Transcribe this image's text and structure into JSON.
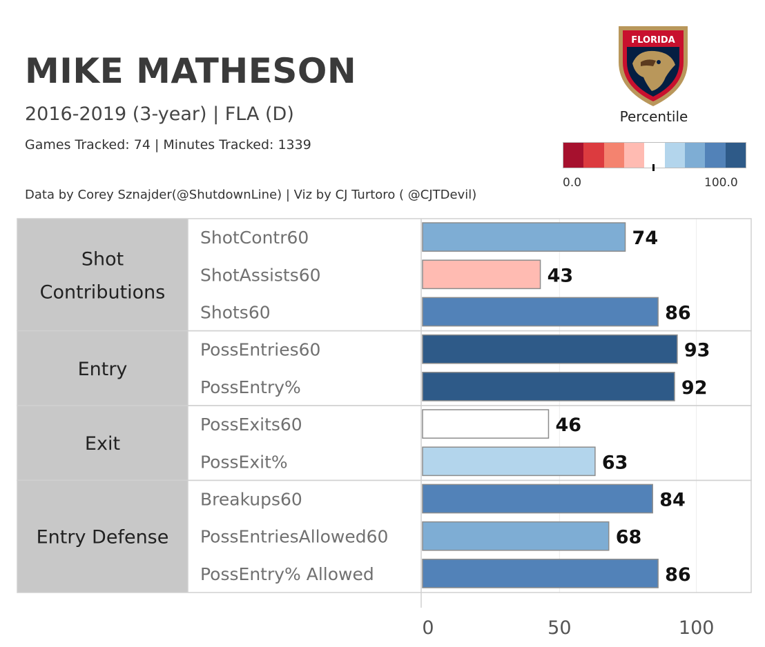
{
  "header": {
    "title": "MIKE MATHESON",
    "subtitle": "2016-2019 (3-year) | FLA (D)",
    "tracked": "Games Tracked: 74  | Minutes Tracked: 1339",
    "credit": "Data by Corey Sznajder(@ShutdownLine) | Viz by CJ Turtoro ( @CJTDevil)"
  },
  "logo": {
    "text": "FLORIDA",
    "icon": "florida-panthers-logo"
  },
  "legend": {
    "title": "Percentile",
    "min_label": "0.0",
    "max_label": "100.0",
    "marker_value": 50,
    "colors": [
      "#a6112e",
      "#dc3b3f",
      "#f4836f",
      "#ffbbb2",
      "#ffffff",
      "#b3d5ec",
      "#7eadd4",
      "#5282b8",
      "#2e5a88"
    ]
  },
  "chart_data": {
    "type": "bar",
    "orientation": "horizontal",
    "xlim": [
      0,
      120
    ],
    "xticks": [
      "0",
      "50",
      "100"
    ],
    "xtick_values": [
      0,
      50,
      100
    ],
    "groups": [
      {
        "name": "Shot\nContributions",
        "metrics": [
          {
            "label": "ShotContr60",
            "value": 74,
            "color": "#7eadd4"
          },
          {
            "label": "ShotAssists60",
            "value": 43,
            "color": "#ffbbb2"
          },
          {
            "label": "Shots60",
            "value": 86,
            "color": "#5282b8"
          }
        ]
      },
      {
        "name": "Entry",
        "metrics": [
          {
            "label": "PossEntries60",
            "value": 93,
            "color": "#2e5a88"
          },
          {
            "label": "PossEntry%",
            "value": 92,
            "color": "#2e5a88"
          }
        ]
      },
      {
        "name": "Exit",
        "metrics": [
          {
            "label": "PossExits60",
            "value": 46,
            "color": "#ffffff"
          },
          {
            "label": "PossExit%",
            "value": 63,
            "color": "#b3d5ec"
          }
        ]
      },
      {
        "name": "Entry Defense",
        "metrics": [
          {
            "label": "Breakups60",
            "value": 84,
            "color": "#5282b8"
          },
          {
            "label": "PossEntriesAllowed60",
            "value": 68,
            "color": "#7eadd4"
          },
          {
            "label": "PossEntry% Allowed",
            "value": 86,
            "color": "#5282b8"
          }
        ]
      }
    ]
  }
}
